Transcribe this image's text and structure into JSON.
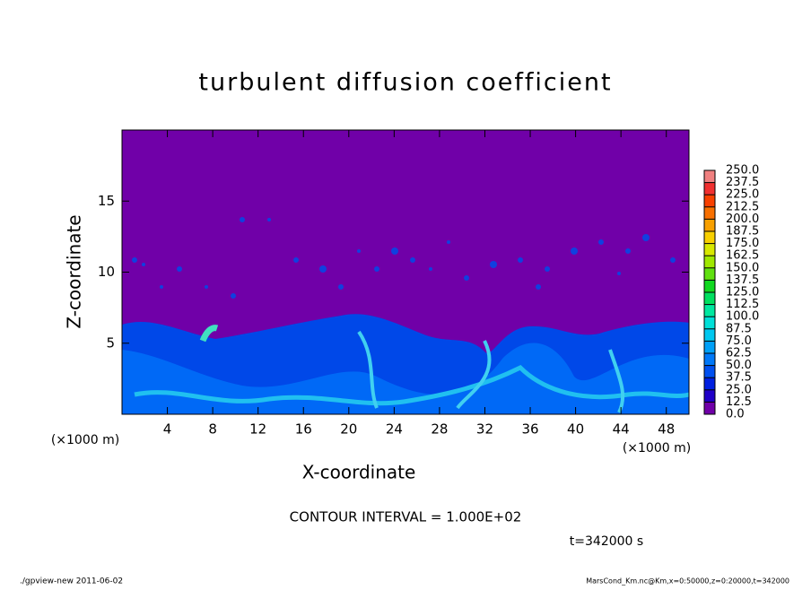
{
  "chart_data": {
    "type": "contour",
    "title": "turbulent diffusion coefficient",
    "x_label": "X-coordinate",
    "y_label": "Z-coordinate",
    "x_unit": "(×1000 m)",
    "y_unit": "(×1000 m)",
    "xlim": [
      0,
      50
    ],
    "xticks": [
      4,
      8,
      12,
      16,
      20,
      24,
      28,
      32,
      36,
      40,
      44,
      48
    ],
    "ylim": [
      0,
      20
    ],
    "yticks": [
      5,
      10,
      15
    ],
    "contour_note": "CONTOUR INTERVAL = 1.000E+02",
    "time_note": "t=342000 s",
    "footer_left": "./gpview-new   2011-06-02",
    "footer_right": "MarsCond_Km.nc@Km,x=0:50000,z=0:20000,t=342000",
    "colorbar": {
      "levels": [
        {
          "value": 0,
          "label": "0.0"
        },
        {
          "value": 12.5,
          "label": "12.5"
        },
        {
          "value": 25,
          "label": "25.0"
        },
        {
          "value": 37.5,
          "label": "37.5"
        },
        {
          "value": 50,
          "label": "50.0"
        },
        {
          "value": 62.5,
          "label": "62.5"
        },
        {
          "value": 75,
          "label": "75.0"
        },
        {
          "value": 87.5,
          "label": "87.5"
        },
        {
          "value": 100,
          "label": "100.0"
        },
        {
          "value": 112.5,
          "label": "112.5"
        },
        {
          "value": 125,
          "label": "125.0"
        },
        {
          "value": 137.5,
          "label": "137.5"
        },
        {
          "value": 150,
          "label": "150.0"
        },
        {
          "value": 162.5,
          "label": "162.5"
        },
        {
          "value": 175,
          "label": "175.0"
        },
        {
          "value": 187.5,
          "label": "187.5"
        },
        {
          "value": 200,
          "label": "200.0"
        },
        {
          "value": 212.5,
          "label": "212.5"
        },
        {
          "value": 225,
          "label": "225.0"
        },
        {
          "value": 237.5,
          "label": "237.5"
        },
        {
          "value": 250,
          "label": "250.0"
        }
      ],
      "colors": [
        "#7000a8",
        "#2000c8",
        "#0020e0",
        "#0050f0",
        "#0078f8",
        "#00a0f8",
        "#00c8f0",
        "#00e0d8",
        "#00e8a0",
        "#00e060",
        "#10d820",
        "#60e010",
        "#a0e800",
        "#d8e800",
        "#f8d000",
        "#f8a000",
        "#f87000",
        "#f84000",
        "#f03030",
        "#f08080"
      ]
    }
  }
}
